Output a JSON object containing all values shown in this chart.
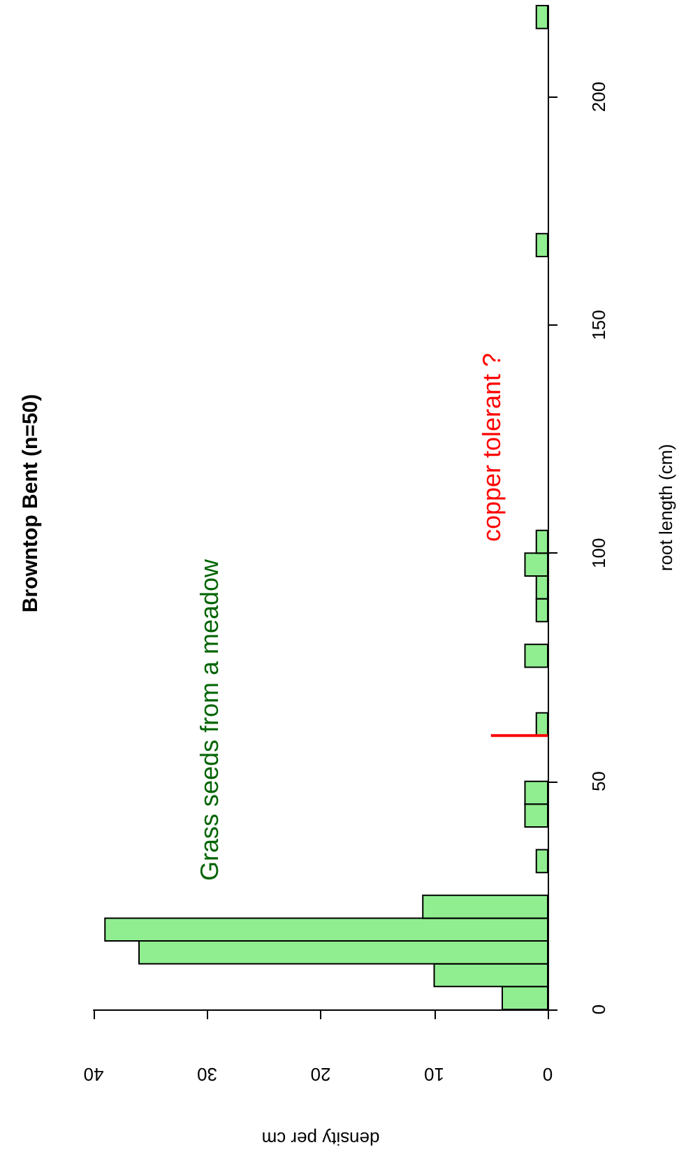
{
  "chart_data": {
    "type": "histogram",
    "orientation": "horizontal",
    "title": "Browntop Bent (n=50)",
    "xlabel": "density per cm",
    "ylabel": "root length (cm)",
    "bins": [
      0,
      5,
      10,
      15,
      20,
      25,
      30,
      35,
      40,
      45,
      50,
      55,
      60,
      65,
      70,
      75,
      80,
      85,
      90,
      95,
      100,
      105,
      110,
      115,
      120,
      125,
      130,
      135,
      140,
      145,
      150,
      155,
      160,
      165,
      170,
      175,
      180,
      185,
      190,
      195,
      200,
      205,
      210,
      215,
      220
    ],
    "series": [
      {
        "color": "#90ee90",
        "values": [
          4,
          10,
          36,
          39,
          11,
          0,
          1,
          0,
          2,
          2,
          0,
          0,
          1,
          0,
          0,
          2,
          0,
          1,
          1,
          2,
          1,
          0,
          0,
          0,
          0,
          0,
          0,
          0,
          0,
          0,
          0,
          0,
          0,
          1,
          0,
          0,
          0,
          0,
          0,
          0,
          0,
          0,
          0,
          1
        ]
      },
      {
        "type": "line",
        "color": "#ff0000",
        "x": [
          60,
          60
        ],
        "values": [
          0,
          5
        ]
      }
    ],
    "xlim": [
      40,
      0
    ],
    "xticks": [
      0,
      10,
      20,
      30,
      40
    ],
    "ylim": [
      0,
      220
    ],
    "yticks": [
      0,
      50,
      100,
      150,
      200
    ],
    "annotations": [
      "Grass seeds from a meadow",
      "copper tolerant ?"
    ],
    "grid": false
  }
}
